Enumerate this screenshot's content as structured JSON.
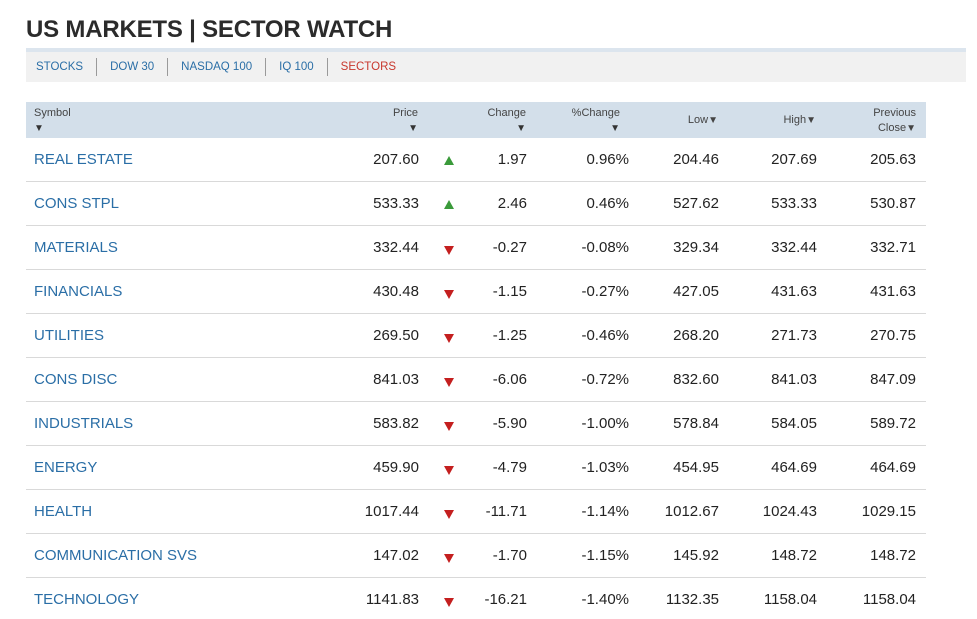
{
  "page": {
    "title": "US MARKETS | SECTOR WATCH"
  },
  "tabs": [
    {
      "label": "STOCKS",
      "active": false
    },
    {
      "label": "DOW 30",
      "active": false
    },
    {
      "label": "NASDAQ 100",
      "active": false
    },
    {
      "label": "IQ 100",
      "active": false
    },
    {
      "label": "SECTORS",
      "active": true
    }
  ],
  "table": {
    "headers": {
      "symbol": "Symbol",
      "price": "Price",
      "change": "Change",
      "pct_change": "%Change",
      "low": "Low",
      "high": "High",
      "prev_line1": "Previous",
      "prev_line2": "Close",
      "sort_arrow": "▼"
    },
    "rows": [
      {
        "symbol": "REAL ESTATE",
        "price": "207.60",
        "trend": "up",
        "change": "1.97",
        "pct": "0.96%",
        "low": "204.46",
        "high": "207.69",
        "prev": "205.63"
      },
      {
        "symbol": "CONS STPL",
        "price": "533.33",
        "trend": "up",
        "change": "2.46",
        "pct": "0.46%",
        "low": "527.62",
        "high": "533.33",
        "prev": "530.87"
      },
      {
        "symbol": "MATERIALS",
        "price": "332.44",
        "trend": "down",
        "change": "-0.27",
        "pct": "-0.08%",
        "low": "329.34",
        "high": "332.44",
        "prev": "332.71"
      },
      {
        "symbol": "FINANCIALS",
        "price": "430.48",
        "trend": "down",
        "change": "-1.15",
        "pct": "-0.27%",
        "low": "427.05",
        "high": "431.63",
        "prev": "431.63"
      },
      {
        "symbol": "UTILITIES",
        "price": "269.50",
        "trend": "down",
        "change": "-1.25",
        "pct": "-0.46%",
        "low": "268.20",
        "high": "271.73",
        "prev": "270.75"
      },
      {
        "symbol": "CONS DISC",
        "price": "841.03",
        "trend": "down",
        "change": "-6.06",
        "pct": "-0.72%",
        "low": "832.60",
        "high": "841.03",
        "prev": "847.09"
      },
      {
        "symbol": "INDUSTRIALS",
        "price": "583.82",
        "trend": "down",
        "change": "-5.90",
        "pct": "-1.00%",
        "low": "578.84",
        "high": "584.05",
        "prev": "589.72"
      },
      {
        "symbol": "ENERGY",
        "price": "459.90",
        "trend": "down",
        "change": "-4.79",
        "pct": "-1.03%",
        "low": "454.95",
        "high": "464.69",
        "prev": "464.69"
      },
      {
        "symbol": "HEALTH",
        "price": "1017.44",
        "trend": "down",
        "change": "-11.71",
        "pct": "-1.14%",
        "low": "1012.67",
        "high": "1024.43",
        "prev": "1029.15"
      },
      {
        "symbol": "COMMUNICATION SVS",
        "price": "147.02",
        "trend": "down",
        "change": "-1.70",
        "pct": "-1.15%",
        "low": "145.92",
        "high": "148.72",
        "prev": "148.72"
      },
      {
        "symbol": "TECHNOLOGY",
        "price": "1141.83",
        "trend": "down",
        "change": "-16.21",
        "pct": "-1.40%",
        "low": "1132.35",
        "high": "1158.04",
        "prev": "1158.04"
      }
    ]
  },
  "colors": {
    "link": "#2a6ea6",
    "active_tab": "#c8372d",
    "up": "#3a9a3a",
    "down": "#c41f1f",
    "header_bg": "#d3dfea"
  },
  "icons": {
    "up": "triangle-up-icon",
    "down": "triangle-down-icon"
  }
}
